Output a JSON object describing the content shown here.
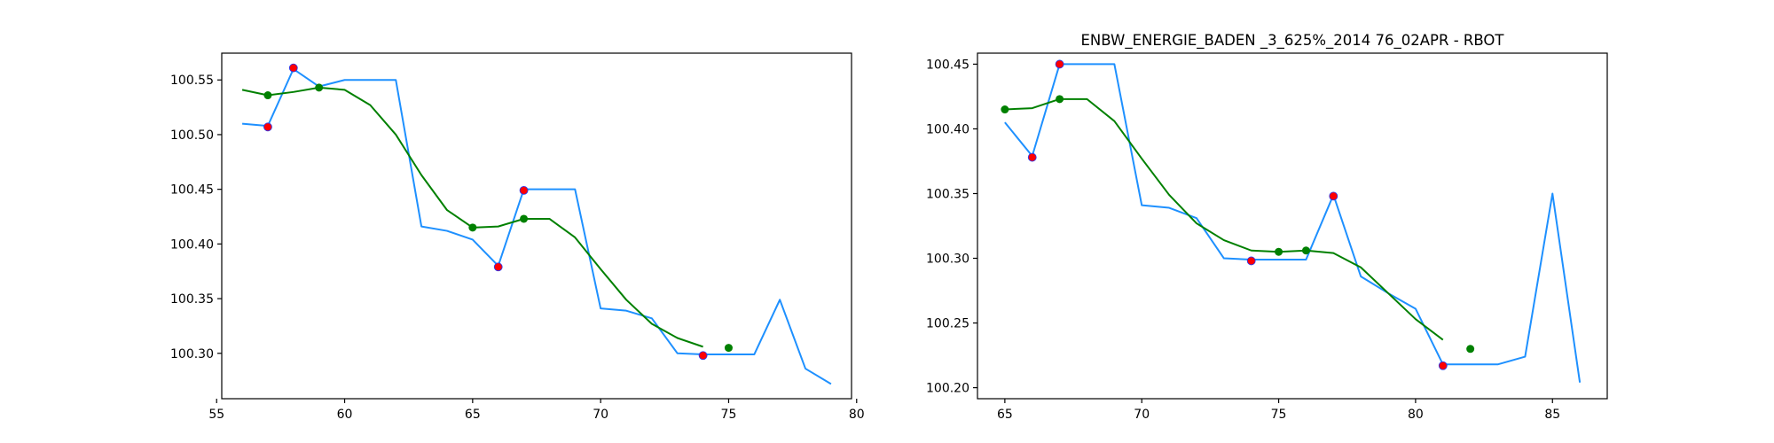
{
  "chart_data": [
    {
      "type": "line",
      "title": "",
      "xlabel": "",
      "ylabel": "",
      "xlim": [
        55.2,
        79.8
      ],
      "ylim": [
        100.2585,
        100.5745
      ],
      "xticks": [
        55,
        60,
        65,
        70,
        75,
        80
      ],
      "yticks": [
        100.3,
        100.35,
        100.4,
        100.45,
        100.5,
        100.55
      ],
      "grid": false,
      "colors": {
        "price": "#1e90ff",
        "smooth": "#008000",
        "extrema": "#ff0000",
        "smooth_points": "#008000"
      },
      "series": [
        {
          "kind": "line",
          "x": [
            56,
            57,
            58,
            59,
            60,
            61,
            62,
            63,
            64,
            65,
            66,
            67,
            68,
            69,
            70,
            71,
            72,
            73,
            74,
            75,
            76,
            77,
            78,
            79
          ],
          "y": [
            100.51,
            100.508,
            100.56,
            100.544,
            100.55,
            100.55,
            100.55,
            100.416,
            100.412,
            100.404,
            100.38,
            100.45,
            100.45,
            100.45,
            100.341,
            100.339,
            100.332,
            100.3,
            100.299,
            100.299,
            100.299,
            100.349,
            100.286,
            100.272
          ]
        },
        {
          "kind": "line",
          "x": [
            56,
            57,
            58,
            59,
            60,
            61,
            62,
            63,
            64,
            65,
            66,
            67,
            68,
            69,
            70,
            71,
            72,
            73,
            74
          ],
          "y": [
            100.541,
            100.536,
            100.539,
            100.543,
            100.541,
            100.527,
            100.5,
            100.463,
            100.431,
            100.415,
            100.416,
            100.423,
            100.423,
            100.406,
            100.377,
            100.349,
            100.327,
            100.314,
            100.306
          ]
        },
        {
          "kind": "scatter",
          "x": [
            57,
            58,
            66,
            67,
            74
          ],
          "y": [
            100.507,
            100.561,
            100.379,
            100.449,
            100.298
          ]
        },
        {
          "kind": "scatter",
          "x": [
            57,
            59,
            65,
            67,
            75
          ],
          "y": [
            100.536,
            100.543,
            100.415,
            100.423,
            100.305
          ]
        }
      ]
    },
    {
      "type": "line",
      "title": "ENBW_ENERGIE_BADEN _3_625%_2014 76_02APR - RBOT",
      "xlabel": "",
      "ylabel": "",
      "xlim": [
        64.0,
        87.0
      ],
      "ylim": [
        100.1915,
        100.4585
      ],
      "xticks": [
        65,
        70,
        75,
        80,
        85
      ],
      "yticks": [
        100.2,
        100.25,
        100.3,
        100.35,
        100.4,
        100.45
      ],
      "grid": false,
      "colors": {
        "price": "#1e90ff",
        "smooth": "#008000",
        "extrema": "#ff0000",
        "smooth_points": "#008000"
      },
      "series": [
        {
          "kind": "line",
          "x": [
            65,
            66,
            67,
            68,
            69,
            70,
            71,
            72,
            73,
            74,
            75,
            76,
            77,
            78,
            79,
            80,
            81,
            82,
            83,
            84,
            85,
            86
          ],
          "y": [
            100.405,
            100.379,
            100.45,
            100.45,
            100.45,
            100.341,
            100.339,
            100.331,
            100.3,
            100.299,
            100.299,
            100.299,
            100.349,
            100.286,
            100.273,
            100.261,
            100.218,
            100.218,
            100.218,
            100.224,
            100.35,
            100.204
          ]
        },
        {
          "kind": "line",
          "x": [
            65,
            66,
            67,
            68,
            69,
            70,
            71,
            72,
            73,
            74,
            75,
            76,
            77,
            78,
            79,
            80,
            81
          ],
          "y": [
            100.415,
            100.416,
            100.423,
            100.423,
            100.406,
            100.377,
            100.349,
            100.327,
            100.314,
            100.306,
            100.305,
            100.306,
            100.304,
            100.293,
            100.273,
            100.253,
            100.237
          ]
        },
        {
          "kind": "scatter",
          "x": [
            66,
            67,
            74,
            77,
            81
          ],
          "y": [
            100.378,
            100.45,
            100.298,
            100.348,
            100.217
          ]
        },
        {
          "kind": "scatter",
          "x": [
            65,
            67,
            75,
            76,
            82
          ],
          "y": [
            100.415,
            100.423,
            100.305,
            100.306,
            100.23
          ]
        }
      ]
    }
  ]
}
